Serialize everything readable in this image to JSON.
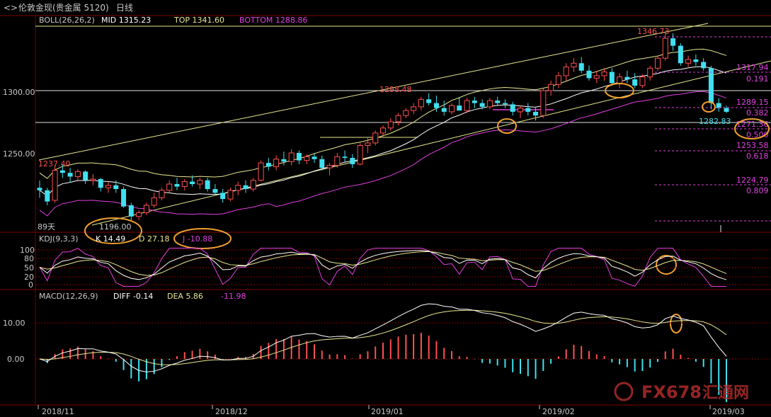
{
  "header": {
    "symbol": "伦敦金现(贵金属 5120)",
    "period": "日线"
  },
  "colors": {
    "up": "#ff5050",
    "down": "#40e0f0",
    "boll_mid": "#ffffff",
    "boll_top": "#e8e890",
    "boll_bottom": "#e040e0",
    "kdj_k": "#ffffff",
    "kdj_d": "#e8e890",
    "kdj_j": "#e040e0",
    "fib": "#e040e0",
    "annot": "#f0a030",
    "grid": "#800000"
  },
  "boll": {
    "label": "BOLL(26,26,2)",
    "mid": "MID 1315.23",
    "top": "TOP 1341.60",
    "bottom": "BOTTOM 1288.86"
  },
  "kdj": {
    "label": "KDJ(9,3,3)",
    "k": "K 14.49",
    "d": "D 27.18",
    "j": "J -10.88"
  },
  "macd": {
    "label": "MACD(12,26,9)",
    "diff": "DIFF -0.14",
    "dea": "DEA 5.86",
    "hist": "-11.98"
  },
  "price_axis": [
    "1300.00",
    "1250.00"
  ],
  "kdj_axis": [
    "100",
    "80",
    "50",
    "20",
    "0"
  ],
  "macd_axis": [
    "10.00",
    "0.00"
  ],
  "date_axis": [
    "2018/11",
    "2018/12",
    "2019/01",
    "2019/02",
    "2019/03"
  ],
  "annotations": {
    "high": "1346.73",
    "low": "1196.00",
    "start": "1237.40",
    "mid_high": "1298.48",
    "last": "1282.83",
    "days": "89天"
  },
  "fib_levels": [
    {
      "price": "1317.94",
      "ratio": "0.191"
    },
    {
      "price": "1289.15",
      "ratio": "0.382"
    },
    {
      "price": "1271.36",
      "ratio": "0.500"
    },
    {
      "price": "1253.58",
      "ratio": "0.618"
    },
    {
      "price": "1224.79",
      "ratio": "0.809"
    }
  ],
  "watermark": {
    "brand": "FX678",
    "cn": "汇通网"
  },
  "chart_data": {
    "type": "candlestick",
    "title": "伦敦金现(贵金属 5120) 日线",
    "ylim": [
      1180,
      1360
    ],
    "candles": [
      [
        1222,
        1228,
        1214,
        1220
      ],
      [
        1220,
        1222,
        1208,
        1211
      ],
      [
        1212,
        1240,
        1210,
        1236
      ],
      [
        1236,
        1241,
        1230,
        1234
      ],
      [
        1234,
        1238,
        1226,
        1231
      ],
      [
        1231,
        1237,
        1228,
        1235
      ],
      [
        1235,
        1236,
        1225,
        1228
      ],
      [
        1228,
        1233,
        1224,
        1229
      ],
      [
        1229,
        1230,
        1219,
        1222
      ],
      [
        1222,
        1227,
        1218,
        1224
      ],
      [
        1224,
        1228,
        1218,
        1221
      ],
      [
        1221,
        1223,
        1206,
        1207
      ],
      [
        1208,
        1210,
        1196,
        1199
      ],
      [
        1199,
        1204,
        1196,
        1202
      ],
      [
        1202,
        1210,
        1200,
        1208
      ],
      [
        1208,
        1218,
        1206,
        1214
      ],
      [
        1214,
        1222,
        1212,
        1220
      ],
      [
        1220,
        1228,
        1218,
        1225
      ],
      [
        1225,
        1230,
        1220,
        1223
      ],
      [
        1223,
        1229,
        1220,
        1227
      ],
      [
        1227,
        1232,
        1223,
        1225
      ],
      [
        1225,
        1230,
        1221,
        1228
      ],
      [
        1228,
        1230,
        1219,
        1221
      ],
      [
        1221,
        1225,
        1216,
        1218
      ],
      [
        1218,
        1221,
        1210,
        1213
      ],
      [
        1213,
        1222,
        1211,
        1220
      ],
      [
        1220,
        1227,
        1216,
        1224
      ],
      [
        1224,
        1228,
        1218,
        1221
      ],
      [
        1221,
        1230,
        1219,
        1228
      ],
      [
        1228,
        1244,
        1227,
        1242
      ],
      [
        1242,
        1246,
        1236,
        1239
      ],
      [
        1239,
        1248,
        1236,
        1245
      ],
      [
        1245,
        1251,
        1240,
        1243
      ],
      [
        1243,
        1253,
        1240,
        1250
      ],
      [
        1250,
        1252,
        1241,
        1244
      ],
      [
        1244,
        1249,
        1241,
        1247
      ],
      [
        1247,
        1250,
        1242,
        1245
      ],
      [
        1245,
        1248,
        1236,
        1238
      ],
      [
        1238,
        1242,
        1232,
        1240
      ],
      [
        1240,
        1250,
        1238,
        1247
      ],
      [
        1247,
        1252,
        1243,
        1246
      ],
      [
        1246,
        1249,
        1238,
        1241
      ],
      [
        1241,
        1258,
        1240,
        1256
      ],
      [
        1256,
        1262,
        1250,
        1258
      ],
      [
        1258,
        1268,
        1256,
        1266
      ],
      [
        1266,
        1272,
        1263,
        1270
      ],
      [
        1270,
        1278,
        1268,
        1275
      ],
      [
        1275,
        1282,
        1272,
        1280
      ],
      [
        1280,
        1286,
        1278,
        1284
      ],
      [
        1284,
        1290,
        1281,
        1287
      ],
      [
        1287,
        1295,
        1284,
        1293
      ],
      [
        1293,
        1298,
        1288,
        1290
      ],
      [
        1290,
        1296,
        1283,
        1286
      ],
      [
        1286,
        1292,
        1280,
        1283
      ],
      [
        1283,
        1290,
        1281,
        1288
      ],
      [
        1288,
        1295,
        1285,
        1284
      ],
      [
        1284,
        1294,
        1282,
        1292
      ],
      [
        1292,
        1295,
        1286,
        1290
      ],
      [
        1290,
        1293,
        1285,
        1287
      ],
      [
        1287,
        1294,
        1285,
        1292
      ],
      [
        1292,
        1295,
        1288,
        1290
      ],
      [
        1290,
        1293,
        1286,
        1289
      ],
      [
        1289,
        1291,
        1280,
        1283
      ],
      [
        1283,
        1288,
        1278,
        1286
      ],
      [
        1286,
        1290,
        1280,
        1283
      ],
      [
        1283,
        1287,
        1276,
        1280
      ],
      [
        1280,
        1302,
        1278,
        1300
      ],
      [
        1300,
        1308,
        1296,
        1305
      ],
      [
        1305,
        1315,
        1302,
        1312
      ],
      [
        1312,
        1322,
        1308,
        1319
      ],
      [
        1319,
        1326,
        1315,
        1322
      ],
      [
        1322,
        1327,
        1314,
        1316
      ],
      [
        1316,
        1320,
        1308,
        1310
      ],
      [
        1310,
        1316,
        1306,
        1312
      ],
      [
        1312,
        1318,
        1308,
        1315
      ],
      [
        1315,
        1318,
        1304,
        1306
      ],
      [
        1306,
        1314,
        1302,
        1311
      ],
      [
        1311,
        1316,
        1306,
        1309
      ],
      [
        1309,
        1314,
        1302,
        1304
      ],
      [
        1304,
        1313,
        1302,
        1311
      ],
      [
        1311,
        1320,
        1308,
        1318
      ],
      [
        1318,
        1328,
        1316,
        1326
      ],
      [
        1326,
        1347,
        1324,
        1342
      ],
      [
        1342,
        1346,
        1332,
        1336
      ],
      [
        1336,
        1338,
        1320,
        1322
      ],
      [
        1322,
        1328,
        1319,
        1325
      ],
      [
        1325,
        1329,
        1320,
        1323
      ],
      [
        1323,
        1326,
        1316,
        1318
      ],
      [
        1318,
        1320,
        1285,
        1290
      ],
      [
        1290,
        1294,
        1283,
        1286
      ],
      [
        1286,
        1288,
        1282,
        1283
      ]
    ],
    "boll_top_label": "1341.60",
    "boll_mid_label": "1315.23",
    "boll_bottom_label": "1288.86"
  }
}
